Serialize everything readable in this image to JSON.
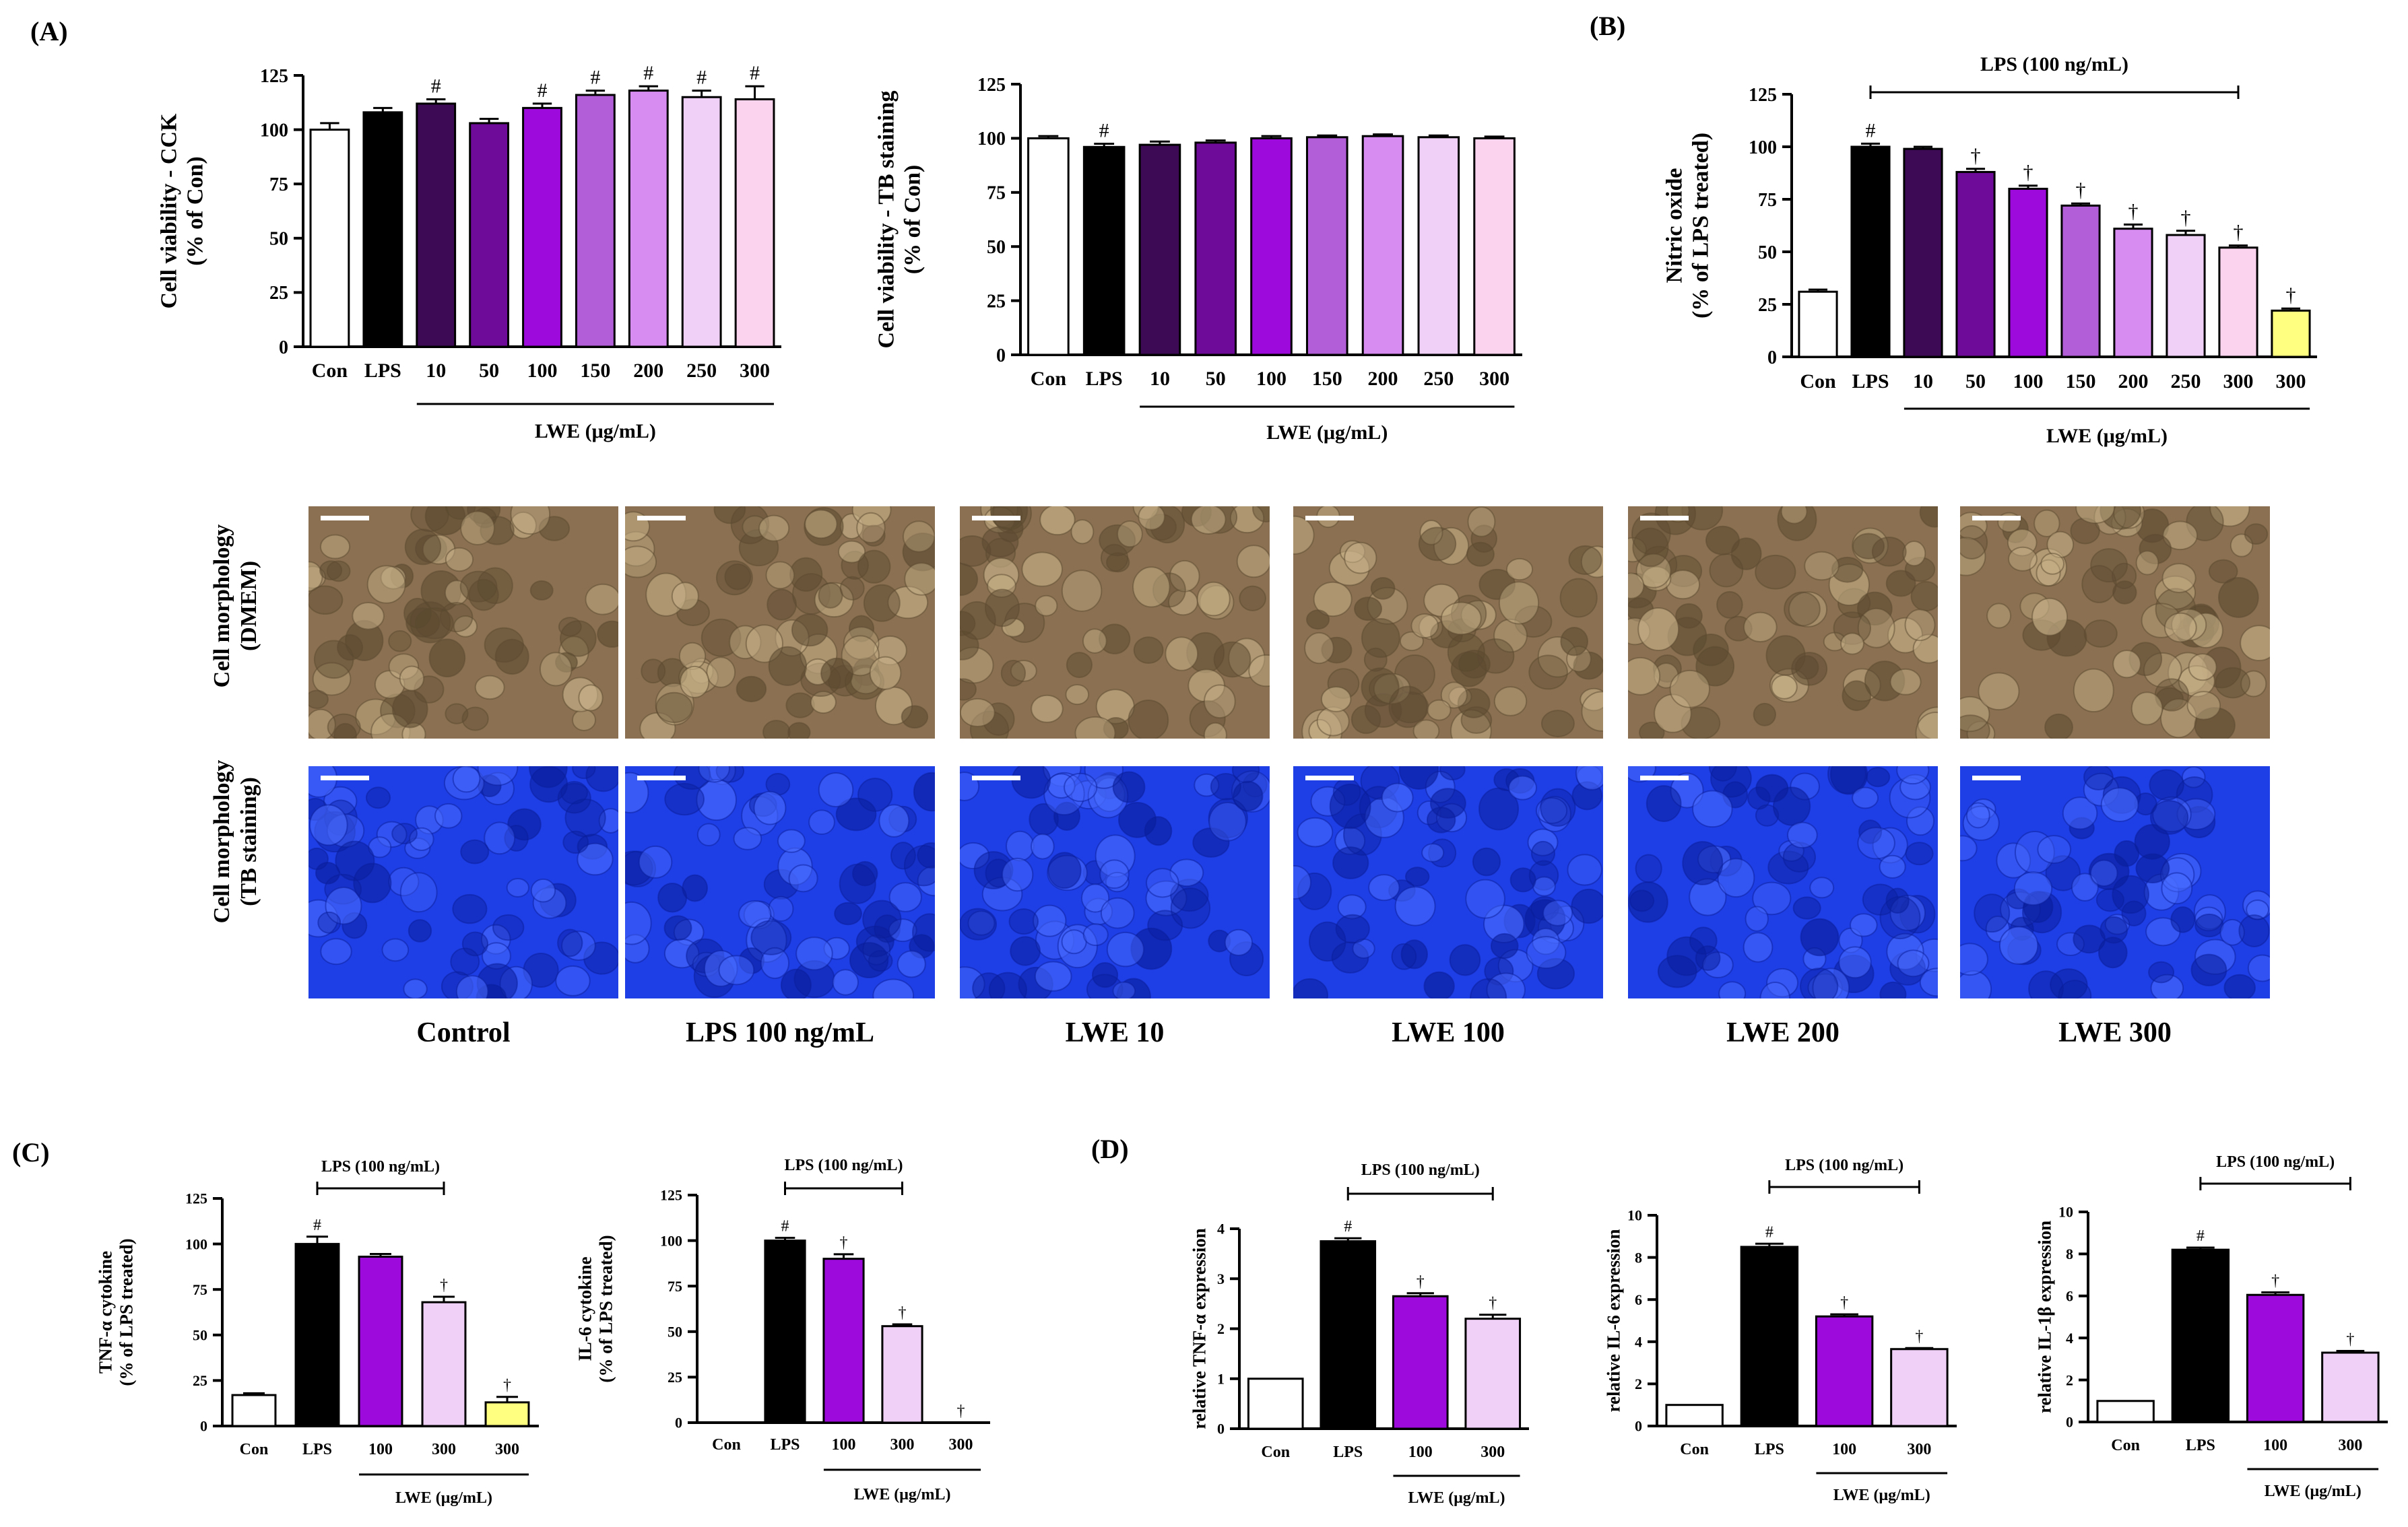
{
  "chart_data": [
    {
      "id": "A1",
      "panel_label": "(A)",
      "type": "bar",
      "ylabel": [
        "Cell viability - CCK",
        "(% of Con)"
      ],
      "ylim": [
        0,
        125
      ],
      "yticks": [
        0,
        25,
        50,
        75,
        100,
        125
      ],
      "categories": [
        "Con",
        "LPS",
        "10",
        "50",
        "100",
        "150",
        "200",
        "250",
        "300"
      ],
      "values": [
        100,
        108,
        112,
        103,
        110,
        116,
        118,
        115,
        114
      ],
      "errors": [
        3,
        2,
        2,
        2,
        2,
        2,
        2,
        3,
        6
      ],
      "annotations": [
        "",
        "",
        "#",
        "",
        "#",
        "#",
        "#",
        "#",
        "#"
      ],
      "colors": [
        "#ffffff",
        "#000000",
        "#3d0a56",
        "#6e0b98",
        "#9d0bdc",
        "#b25ed9",
        "#d78cf2",
        "#f0d0f6",
        "#fcd3ee"
      ],
      "group_label": "LWE (μg/mL)",
      "group_start": 2,
      "group_end": 8
    },
    {
      "id": "A2",
      "panel_label": "",
      "type": "bar",
      "ylabel": [
        "Cell viability - TB staining",
        "(% of Con)"
      ],
      "ylim": [
        0,
        125
      ],
      "yticks": [
        0,
        25,
        50,
        75,
        100,
        125
      ],
      "categories": [
        "Con",
        "LPS",
        "10",
        "50",
        "100",
        "150",
        "200",
        "250",
        "300"
      ],
      "values": [
        100,
        96,
        97,
        98,
        100,
        100.5,
        101,
        100.5,
        100
      ],
      "errors": [
        1,
        1.5,
        1.5,
        1,
        1,
        0.8,
        0.8,
        0.8,
        0.8
      ],
      "annotations": [
        "",
        "#",
        "",
        "",
        "",
        "",
        "",
        "",
        ""
      ],
      "colors": [
        "#ffffff",
        "#000000",
        "#3d0a56",
        "#6e0b98",
        "#9d0bdc",
        "#b25ed9",
        "#d78cf2",
        "#f0d0f6",
        "#fcd3ee"
      ],
      "group_label": "LWE (μg/mL)",
      "group_start": 2,
      "group_end": 8
    },
    {
      "id": "B",
      "panel_label": "(B)",
      "type": "bar",
      "ylabel": [
        "Nitric oxide",
        "(% of LPS treated)"
      ],
      "ylim": [
        0,
        125
      ],
      "yticks": [
        0,
        25,
        50,
        75,
        100,
        125
      ],
      "categories": [
        "Con",
        "LPS",
        "10",
        "50",
        "100",
        "150",
        "200",
        "250",
        "300",
        "300"
      ],
      "values": [
        31,
        100,
        99,
        88,
        80,
        72,
        61,
        58,
        52,
        22
      ],
      "errors": [
        1,
        1.5,
        1,
        1.5,
        1.5,
        1,
        2,
        2,
        1,
        1
      ],
      "annotations": [
        "",
        "#",
        "",
        "†",
        "†",
        "†",
        "†",
        "†",
        "†",
        "†"
      ],
      "colors": [
        "#ffffff",
        "#000000",
        "#3d0a56",
        "#6e0b98",
        "#9d0bdc",
        "#b25ed9",
        "#d78cf2",
        "#f0d0f6",
        "#fcd3ee",
        "#ffff80"
      ],
      "group_label": "LWE (μg/mL)",
      "group_start": 2,
      "group_end": 9,
      "top_bracket_label": "LPS (100 ng/mL)",
      "top_bracket_start": 1,
      "top_bracket_end": 8
    },
    {
      "id": "C1",
      "panel_label": "(C)",
      "type": "bar",
      "ylabel": [
        "TNF-α cytokine",
        "(% of LPS treated)"
      ],
      "ylim": [
        0,
        125
      ],
      "yticks": [
        0,
        25,
        50,
        75,
        100,
        125
      ],
      "categories": [
        "Con",
        "LPS",
        "100",
        "300",
        "300"
      ],
      "values": [
        17,
        100,
        93,
        68,
        13
      ],
      "errors": [
        1,
        4,
        1.5,
        3,
        3
      ],
      "annotations": [
        "",
        "#",
        "",
        "†",
        "†"
      ],
      "colors": [
        "#ffffff",
        "#000000",
        "#9d0bdc",
        "#f0d0f6",
        "#ffff80"
      ],
      "group_label": "LWE (μg/mL)",
      "group_start": 2,
      "group_end": 4,
      "top_bracket_label": "LPS (100 ng/mL)",
      "top_bracket_start": 1,
      "top_bracket_end": 3
    },
    {
      "id": "C2",
      "panel_label": "",
      "type": "bar",
      "ylabel": [
        "IL-6 cytokine",
        "(% of LPS treated)"
      ],
      "ylim": [
        0,
        125
      ],
      "yticks": [
        0,
        25,
        50,
        75,
        100,
        125
      ],
      "categories": [
        "Con",
        "LPS",
        "100",
        "300",
        "300"
      ],
      "values": [
        0,
        100,
        90,
        53,
        0
      ],
      "errors": [
        0,
        1.5,
        2.5,
        1,
        0
      ],
      "annotations": [
        "",
        "#",
        "†",
        "†",
        "†"
      ],
      "colors": [
        "#ffffff",
        "#000000",
        "#9d0bdc",
        "#f0d0f6",
        "#ffff80"
      ],
      "group_label": "LWE (μg/mL)",
      "group_start": 2,
      "group_end": 4,
      "top_bracket_label": "LPS (100 ng/mL)",
      "top_bracket_start": 1,
      "top_bracket_end": 3
    },
    {
      "id": "D1",
      "panel_label": "(D)",
      "type": "bar",
      "ylabel": [
        "relative TNF-α expression"
      ],
      "ylim": [
        0,
        4
      ],
      "yticks": [
        0,
        1,
        2,
        3,
        4
      ],
      "categories": [
        "Con",
        "LPS",
        "100",
        "300"
      ],
      "values": [
        1.0,
        3.75,
        2.65,
        2.2
      ],
      "errors": [
        0,
        0.06,
        0.06,
        0.08
      ],
      "annotations": [
        "",
        "#",
        "†",
        "†"
      ],
      "colors": [
        "#ffffff",
        "#000000",
        "#9d0bdc",
        "#f0d0f6"
      ],
      "group_label": "LWE (μg/mL)",
      "group_start": 2,
      "group_end": 3,
      "top_bracket_label": "LPS (100 ng/mL)",
      "top_bracket_start": 1,
      "top_bracket_end": 3
    },
    {
      "id": "D2",
      "panel_label": "",
      "type": "bar",
      "ylabel": [
        "relative IL-6 expression"
      ],
      "ylim": [
        0,
        10
      ],
      "yticks": [
        0,
        2,
        4,
        6,
        8,
        10
      ],
      "categories": [
        "Con",
        "LPS",
        "100",
        "300"
      ],
      "values": [
        1.0,
        8.5,
        5.2,
        3.65
      ],
      "errors": [
        0,
        0.15,
        0.1,
        0.05
      ],
      "annotations": [
        "",
        "#",
        "†",
        "†"
      ],
      "colors": [
        "#ffffff",
        "#000000",
        "#9d0bdc",
        "#f0d0f6"
      ],
      "group_label": "LWE (μg/mL)",
      "group_start": 2,
      "group_end": 3,
      "top_bracket_label": "LPS (100 ng/mL)",
      "top_bracket_start": 1,
      "top_bracket_end": 3
    },
    {
      "id": "D3",
      "panel_label": "",
      "type": "bar",
      "ylabel": [
        "relative IL-1β expression"
      ],
      "ylim": [
        0,
        10
      ],
      "yticks": [
        0,
        2,
        4,
        6,
        8,
        10
      ],
      "categories": [
        "Con",
        "LPS",
        "100",
        "300"
      ],
      "values": [
        1.0,
        8.2,
        6.05,
        3.3
      ],
      "errors": [
        0,
        0.1,
        0.12,
        0.08
      ],
      "annotations": [
        "",
        "#",
        "†",
        "†"
      ],
      "colors": [
        "#ffffff",
        "#000000",
        "#9d0bdc",
        "#f0d0f6"
      ],
      "group_label": "LWE (μg/mL)",
      "group_start": 2,
      "group_end": 3,
      "top_bracket_label": "LPS (100 ng/mL)",
      "top_bracket_start": 1,
      "top_bracket_end": 3
    }
  ],
  "micrographs": {
    "row_labels": [
      "Cell morphology\n(DMEM)",
      "Cell morphology\n(TB staining)"
    ],
    "captions": [
      "Control",
      "LPS 100 ng/mL",
      "LWE 10",
      "LWE 100",
      "LWE 200",
      "LWE 300"
    ],
    "colors": {
      "dmem": "#8b7152",
      "tb": "#1f3fe6"
    }
  }
}
